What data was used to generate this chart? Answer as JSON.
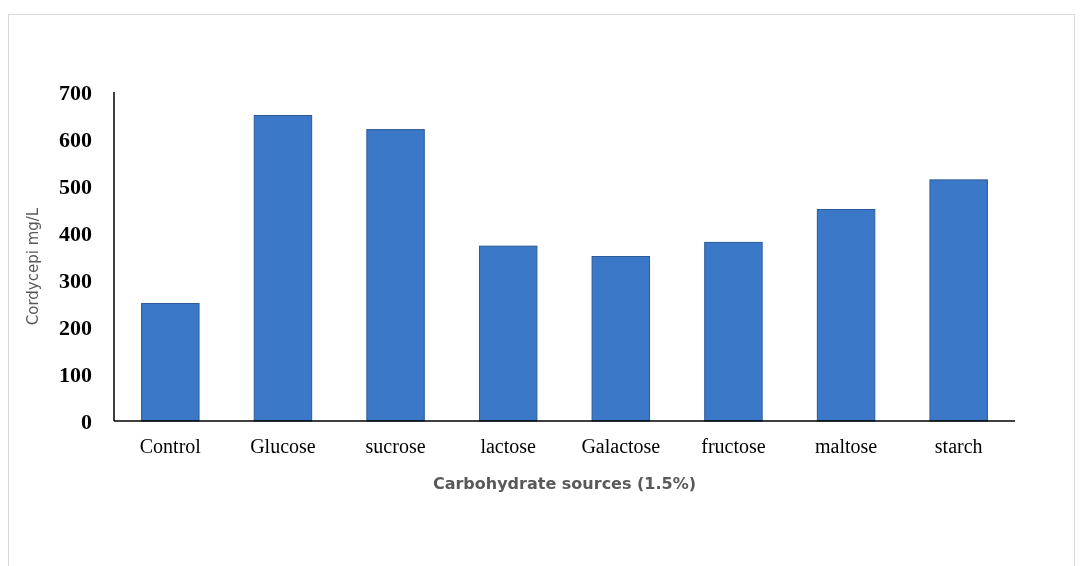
{
  "chart_data": {
    "type": "bar",
    "xlabel": "Carbohydrate sources (1.5%)",
    "ylabel": "Cordycepi mg/L",
    "categories": [
      "Control",
      "Glucose",
      "sucrose",
      "lactose",
      "Galactose",
      "fructose",
      "maltose",
      "starch"
    ],
    "values": [
      250,
      650,
      620,
      372,
      350,
      380,
      450,
      513
    ],
    "color": "#3c78c8",
    "ylim": [
      0,
      700
    ],
    "yticks": [
      0,
      100,
      200,
      300,
      400,
      500,
      600,
      700
    ],
    "grid": false
  }
}
